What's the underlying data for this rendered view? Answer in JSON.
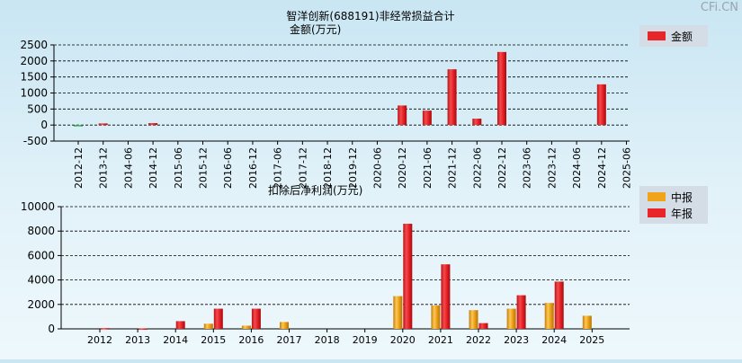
{
  "watermark": "CFi.CN",
  "colors": {
    "annual": "#e8262a",
    "interim": "#f0a419",
    "legend_bg": "#d4dde6"
  },
  "chart_data": [
    {
      "type": "bar",
      "title": "智洋创新(688191)非经常损益合计",
      "subtitle": "金额(万元)",
      "categories": [
        "2012-12",
        "2013-12",
        "2014-06",
        "2014-12",
        "2015-06",
        "2015-12",
        "2016-06",
        "2016-12",
        "2017-06",
        "2017-12",
        "2018-12",
        "2019-12",
        "2020-06",
        "2020-12",
        "2021-06",
        "2021-12",
        "2022-06",
        "2022-12",
        "2023-06",
        "2023-12",
        "2024-06",
        "2024-12",
        "2025-06"
      ],
      "series": [
        {
          "name": "金额",
          "color": "#e8262a",
          "values": [
            -30,
            50,
            null,
            60,
            null,
            null,
            null,
            null,
            null,
            null,
            null,
            null,
            null,
            610,
            450,
            1740,
            200,
            2280,
            null,
            null,
            null,
            1270,
            null
          ]
        }
      ],
      "ylim": [
        -500,
        2500
      ],
      "yticks": [
        -500,
        0,
        500,
        1000,
        1500,
        2000,
        2500
      ],
      "grid": true,
      "legend": "top-right"
    },
    {
      "type": "bar",
      "title": "扣除后净利润(万元)",
      "categories": [
        "2012",
        "2013",
        "2014",
        "2015",
        "2016",
        "2017",
        "2018",
        "2019",
        "2020",
        "2021",
        "2022",
        "2023",
        "2024",
        "2025"
      ],
      "series": [
        {
          "name": "中报",
          "color": "#f0a419",
          "values": [
            null,
            null,
            null,
            420,
            260,
            560,
            null,
            null,
            2680,
            1920,
            1530,
            1650,
            2120,
            1070
          ]
        },
        {
          "name": "年报",
          "color": "#e8262a",
          "values": [
            60,
            40,
            630,
            1650,
            1650,
            null,
            null,
            null,
            8600,
            5280,
            470,
            2750,
            3870,
            null
          ]
        }
      ],
      "ylim": [
        0,
        10000
      ],
      "yticks": [
        0,
        2000,
        4000,
        6000,
        8000,
        10000
      ],
      "grid": true,
      "legend": "top-right"
    }
  ]
}
